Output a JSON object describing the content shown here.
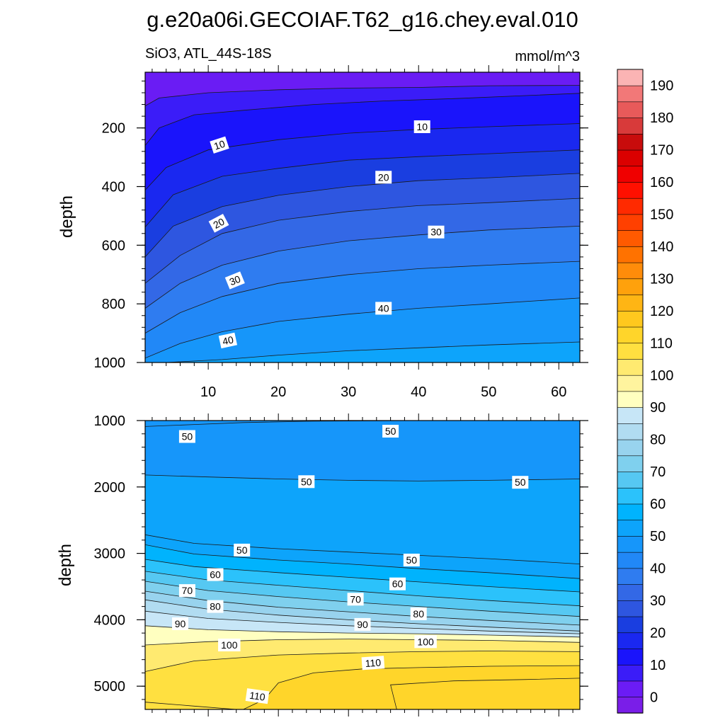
{
  "title": "g.e20a06i.GECOIAF.T62_g16.chey.eval.010",
  "chart_data": [
    {
      "type": "contour",
      "panel": "upper",
      "subtitle_left": "SiO3, ATL_44S-18S",
      "subtitle_right": "mmol/m^3",
      "ylabel": "depth",
      "xlabel": "",
      "xlim": [
        1,
        63
      ],
      "ylim": [
        1000,
        10
      ],
      "x_ticks": [
        "10",
        "20",
        "30",
        "40",
        "50",
        "60"
      ],
      "y_ticks": [
        "200",
        "400",
        "600",
        "800",
        "1000"
      ],
      "contours": [
        {
          "level": 5,
          "pts": [
            [
              1,
              125
            ],
            [
              3,
              98
            ],
            [
              10,
              80
            ],
            [
              20,
              70
            ],
            [
              30,
              64
            ],
            [
              40,
              62
            ],
            [
              50,
              56
            ],
            [
              63,
              55
            ]
          ]
        },
        {
          "level": 10,
          "pts": [
            [
              1,
              260
            ],
            [
              3,
              200
            ],
            [
              8,
              155
            ],
            [
              15,
              140
            ],
            [
              25,
              120
            ],
            [
              35,
              108
            ],
            [
              45,
              100
            ],
            [
              55,
              90
            ],
            [
              63,
              82
            ]
          ]
        },
        {
          "level": 15,
          "pts": [
            [
              1,
              412
            ],
            [
              4,
              335
            ],
            [
              10,
              275
            ],
            [
              20,
              240
            ],
            [
              30,
              218
            ],
            [
              40,
              205
            ],
            [
              50,
              196
            ],
            [
              63,
              185
            ]
          ]
        },
        {
          "level": 20,
          "pts": [
            [
              1,
              538
            ],
            [
              5,
              428
            ],
            [
              12,
              365
            ],
            [
              20,
              338
            ],
            [
              30,
              310
            ],
            [
              40,
              298
            ],
            [
              50,
              288
            ],
            [
              63,
              275
            ]
          ]
        },
        {
          "level": 25,
          "pts": [
            [
              1,
              640
            ],
            [
              5,
              535
            ],
            [
              12,
              468
            ],
            [
              20,
              430
            ],
            [
              30,
              400
            ],
            [
              40,
              380
            ],
            [
              50,
              370
            ],
            [
              63,
              355
            ]
          ]
        },
        {
          "level": 30,
          "pts": [
            [
              1,
              730
            ],
            [
              6,
              635
            ],
            [
              12,
              560
            ],
            [
              20,
              515
            ],
            [
              30,
              485
            ],
            [
              40,
              465
            ],
            [
              50,
              455
            ],
            [
              63,
              440
            ]
          ]
        },
        {
          "level": 35,
          "pts": [
            [
              1,
              815
            ],
            [
              6,
              730
            ],
            [
              12,
              668
            ],
            [
              20,
              620
            ],
            [
              30,
              585
            ],
            [
              40,
              565
            ],
            [
              50,
              548
            ],
            [
              63,
              535
            ]
          ]
        },
        {
          "level": 40,
          "pts": [
            [
              1,
              900
            ],
            [
              6,
              830
            ],
            [
              12,
              775
            ],
            [
              20,
              730
            ],
            [
              30,
              700
            ],
            [
              40,
              680
            ],
            [
              50,
              668
            ],
            [
              63,
              655
            ]
          ]
        },
        {
          "level": 45,
          "pts": [
            [
              1,
              985
            ],
            [
              6,
              935
            ],
            [
              12,
              895
            ],
            [
              20,
              860
            ],
            [
              30,
              835
            ],
            [
              40,
              815
            ],
            [
              50,
              800
            ],
            [
              63,
              780
            ]
          ]
        },
        {
          "level": 50,
          "pts": [
            [
              4,
              1000
            ],
            [
              12,
              990
            ],
            [
              20,
              975
            ],
            [
              30,
              960
            ],
            [
              40,
              950
            ],
            [
              50,
              940
            ],
            [
              63,
              930
            ]
          ]
        }
      ],
      "labels": [
        {
          "text": "10",
          "x": 11.6,
          "y": 258,
          "rot": -18
        },
        {
          "text": "10",
          "x": 40.5,
          "y": 196,
          "rot": 0
        },
        {
          "text": "20",
          "x": 11.5,
          "y": 525,
          "rot": -28
        },
        {
          "text": "20",
          "x": 35,
          "y": 368,
          "rot": 0
        },
        {
          "text": "30",
          "x": 13.8,
          "y": 720,
          "rot": -22
        },
        {
          "text": "30",
          "x": 42.5,
          "y": 555,
          "rot": 0
        },
        {
          "text": "40",
          "x": 12.8,
          "y": 925,
          "rot": -12
        },
        {
          "text": "40",
          "x": 35,
          "y": 815,
          "rot": 0
        }
      ]
    },
    {
      "type": "contour",
      "panel": "lower",
      "ylabel": "depth",
      "xlabel": "",
      "xlim": [
        1,
        63
      ],
      "ylim": [
        5350,
        1000
      ],
      "x_ticks": [],
      "y_ticks": [
        "1000",
        "2000",
        "3000",
        "4000",
        "5000"
      ],
      "contours": [
        {
          "level": 47.5,
          "pts": [
            [
              1,
              1090
            ],
            [
              8,
              1060
            ],
            [
              15,
              1030
            ],
            [
              25,
              1010
            ],
            [
              40,
              1000
            ],
            [
              63,
              1000
            ]
          ]
        },
        {
          "level": 50,
          "pts": [
            [
              1,
              1820
            ],
            [
              10,
              1850
            ],
            [
              20,
              1880
            ],
            [
              30,
              1900
            ],
            [
              40,
              1910
            ],
            [
              50,
              1900
            ],
            [
              63,
              1880
            ]
          ]
        },
        {
          "level": 52.5,
          "pts": [
            [
              1,
              2720
            ],
            [
              8,
              2850
            ],
            [
              20,
              2930
            ],
            [
              30,
              2980
            ],
            [
              40,
              3030
            ],
            [
              50,
              3080
            ],
            [
              63,
              3160
            ]
          ]
        },
        {
          "level": 55,
          "pts": [
            [
              1,
              2870
            ],
            [
              8,
              3010
            ],
            [
              20,
              3100
            ],
            [
              30,
              3160
            ],
            [
              40,
              3230
            ],
            [
              50,
              3290
            ],
            [
              63,
              3380
            ]
          ]
        },
        {
          "level": 60,
          "pts": [
            [
              1,
              3090
            ],
            [
              8,
              3200
            ],
            [
              20,
              3290
            ],
            [
              30,
              3360
            ],
            [
              40,
              3430
            ],
            [
              50,
              3500
            ],
            [
              63,
              3580
            ]
          ]
        },
        {
          "level": 65,
          "pts": [
            [
              1,
              3270
            ],
            [
              10,
              3400
            ],
            [
              20,
              3480
            ],
            [
              30,
              3560
            ],
            [
              40,
              3640
            ],
            [
              50,
              3710
            ],
            [
              63,
              3790
            ]
          ]
        },
        {
          "level": 70,
          "pts": [
            [
              1,
              3420
            ],
            [
              10,
              3560
            ],
            [
              20,
              3650
            ],
            [
              30,
              3730
            ],
            [
              40,
              3800
            ],
            [
              50,
              3870
            ],
            [
              63,
              3950
            ]
          ]
        },
        {
          "level": 75,
          "pts": [
            [
              1,
              3570
            ],
            [
              10,
              3710
            ],
            [
              20,
              3810
            ],
            [
              30,
              3880
            ],
            [
              40,
              3950
            ],
            [
              50,
              4010
            ],
            [
              63,
              4080
            ]
          ]
        },
        {
          "level": 80,
          "pts": [
            [
              1,
              3700
            ],
            [
              10,
              3840
            ],
            [
              20,
              3930
            ],
            [
              30,
              4000
            ],
            [
              40,
              4060
            ],
            [
              50,
              4110
            ],
            [
              63,
              4170
            ]
          ]
        },
        {
          "level": 85,
          "pts": [
            [
              1,
              3870
            ],
            [
              10,
              3980
            ],
            [
              20,
              4040
            ],
            [
              30,
              4090
            ],
            [
              40,
              4130
            ],
            [
              50,
              4170
            ],
            [
              63,
              4210
            ]
          ]
        },
        {
          "level": 90,
          "pts": [
            [
              1,
              4090
            ],
            [
              10,
              4150
            ],
            [
              20,
              4180
            ],
            [
              30,
              4200
            ],
            [
              40,
              4210
            ],
            [
              50,
              4230
            ],
            [
              63,
              4260
            ]
          ]
        },
        {
          "level": 100,
          "pts": [
            [
              1,
              4380
            ],
            [
              10,
              4330
            ],
            [
              20,
              4300
            ],
            [
              30,
              4290
            ],
            [
              40,
              4300
            ],
            [
              50,
              4310
            ],
            [
              63,
              4340
            ]
          ]
        },
        {
          "level": 105,
          "pts": [
            [
              1,
              4780
            ],
            [
              8,
              4620
            ],
            [
              20,
              4530
            ],
            [
              30,
              4500
            ],
            [
              40,
              4480
            ],
            [
              50,
              4470
            ],
            [
              63,
              4480
            ]
          ]
        },
        {
          "level": 110,
          "pts": [
            [
              15,
              5350
            ],
            [
              18,
              5200
            ],
            [
              20,
              4950
            ],
            [
              25,
              4800
            ],
            [
              32,
              4740
            ],
            [
              40,
              4720
            ],
            [
              50,
              4700
            ],
            [
              63,
              4690
            ]
          ]
        },
        {
          "level": 112.5,
          "pts": [
            [
              37,
              5400
            ],
            [
              36,
              4980
            ],
            [
              45,
              4920
            ],
            [
              55,
              4900
            ],
            [
              63,
              4880
            ]
          ]
        },
        {
          "level": 108,
          "pts": [
            [
              1,
              5240
            ],
            [
              8,
              5300
            ],
            [
              14,
              5350
            ]
          ]
        }
      ],
      "labels": [
        {
          "text": "50",
          "x": 7,
          "y": 1240,
          "rot": 0
        },
        {
          "text": "50",
          "x": 36,
          "y": 1160,
          "rot": 0
        },
        {
          "text": "50",
          "x": 24,
          "y": 1920,
          "rot": 0
        },
        {
          "text": "50",
          "x": 54.5,
          "y": 1930,
          "rot": 0
        },
        {
          "text": "50",
          "x": 14.8,
          "y": 2950,
          "rot": 0
        },
        {
          "text": "50",
          "x": 39,
          "y": 3100,
          "rot": 0
        },
        {
          "text": "60",
          "x": 11,
          "y": 3320,
          "rot": 0
        },
        {
          "text": "60",
          "x": 37,
          "y": 3460,
          "rot": 0
        },
        {
          "text": "70",
          "x": 7,
          "y": 3560,
          "rot": 0
        },
        {
          "text": "70",
          "x": 31,
          "y": 3690,
          "rot": 0
        },
        {
          "text": "80",
          "x": 11,
          "y": 3800,
          "rot": 0
        },
        {
          "text": "80",
          "x": 40,
          "y": 3910,
          "rot": 0
        },
        {
          "text": "90",
          "x": 6,
          "y": 4060,
          "rot": 0
        },
        {
          "text": "90",
          "x": 32,
          "y": 4070,
          "rot": 0
        },
        {
          "text": "100",
          "x": 13,
          "y": 4380,
          "rot": 0
        },
        {
          "text": "100",
          "x": 41,
          "y": 4330,
          "rot": 0
        },
        {
          "text": "110",
          "x": 33.5,
          "y": 4650,
          "rot": -4
        },
        {
          "text": "110",
          "x": 17,
          "y": 5150,
          "rot": 8
        }
      ]
    }
  ],
  "colorbar": {
    "labels": [
      "0",
      "10",
      "20",
      "30",
      "40",
      "50",
      "60",
      "70",
      "80",
      "90",
      "100",
      "110",
      "120",
      "130",
      "140",
      "150",
      "160",
      "170",
      "180",
      "190"
    ],
    "colors": [
      "#7a1ee8",
      "#6b1cf5",
      "#3b1cf8",
      "#1a14fb",
      "#1a28f0",
      "#1a3ee0",
      "#2e56e0",
      "#3368e6",
      "#2f7cf0",
      "#2188f7",
      "#1696fa",
      "#0da4fb",
      "#00b3fd",
      "#2bc2fb",
      "#56c8f2",
      "#7fd0ee",
      "#98d3ee",
      "#b1dcf1",
      "#c7e6f7",
      "#ffffc0",
      "#fff49e",
      "#ffea70",
      "#ffe040",
      "#ffd52a",
      "#ffc81e",
      "#ffb514",
      "#ffa10c",
      "#ff8c0a",
      "#ff7200",
      "#ff5a00",
      "#ff4000",
      "#ff2a00",
      "#ff1000",
      "#f00000",
      "#db0000",
      "#c80c0c",
      "#d83a3a",
      "#e85a5a",
      "#f27878",
      "#fbb4b4"
    ]
  }
}
